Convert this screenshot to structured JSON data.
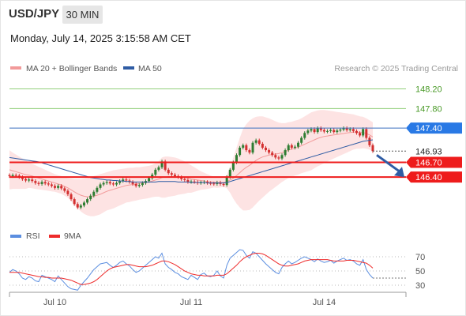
{
  "header": {
    "symbol": "USD/JPY",
    "timeframe": "30 MIN",
    "datetime": "Monday, July 14, 2025 3:15:58 AM CET"
  },
  "colors": {
    "bb_fill": "#fde3e3",
    "ma20": "#f29a9a",
    "ma50": "#2f5ca4",
    "candle_up": "#2e7d32",
    "candle_down": "#d32f2f",
    "target_line": "#93cf7b",
    "pivot_line": "#3b6fbf",
    "support_line": "#ee1c1c",
    "rsi": "#5b8ee0",
    "rsi_ma": "#ee2b2b"
  },
  "chart_data": [
    {
      "type": "candlestick",
      "legend": [
        {
          "name": "MA 20 + Bollinger Bands",
          "color": "#f29a9a"
        },
        {
          "name": "MA 50",
          "color": "#2f5ca4"
        }
      ],
      "credit": "Research © 2025 Trading Central",
      "x_ticks": [
        "Jul 10",
        "Jul 11",
        "Jul 14"
      ],
      "ylim": [
        145.5,
        148.45
      ],
      "levels": [
        {
          "value": 148.2,
          "label": "148.20",
          "kind": "target"
        },
        {
          "value": 147.8,
          "label": "147.80",
          "kind": "target"
        },
        {
          "value": 147.4,
          "label": "147.40",
          "kind": "pivot"
        },
        {
          "value": 146.93,
          "label": "146.93",
          "kind": "last"
        },
        {
          "value": 146.7,
          "label": "146.70",
          "kind": "support"
        },
        {
          "value": 146.4,
          "label": "146.40",
          "kind": "support"
        }
      ],
      "close": [
        146.42,
        146.44,
        146.43,
        146.4,
        146.36,
        146.33,
        146.35,
        146.32,
        146.28,
        146.26,
        146.3,
        146.27,
        146.25,
        146.22,
        146.18,
        146.22,
        146.17,
        146.12,
        146.05,
        145.95,
        145.85,
        145.78,
        145.82,
        145.88,
        145.95,
        146.02,
        146.1,
        146.18,
        146.25,
        146.28,
        146.3,
        146.27,
        146.25,
        146.28,
        146.32,
        146.35,
        146.33,
        146.3,
        146.26,
        146.22,
        146.24,
        146.28,
        146.32,
        146.38,
        146.45,
        146.55,
        146.6,
        146.72,
        146.55,
        146.48,
        146.45,
        146.42,
        146.4,
        146.36,
        146.34,
        146.3,
        146.31,
        146.3,
        146.28,
        146.29,
        146.3,
        146.28,
        146.27,
        146.26,
        146.29,
        146.26,
        146.24,
        146.4,
        146.55,
        146.7,
        146.85,
        147.0,
        147.05,
        146.95,
        146.9,
        147.1,
        147.15,
        147.08,
        147.0,
        146.95,
        146.9,
        146.85,
        146.8,
        146.78,
        146.85,
        146.95,
        147.05,
        147.0,
        147.02,
        147.1,
        147.2,
        147.3,
        147.35,
        147.38,
        147.32,
        147.4,
        147.36,
        147.33,
        147.34,
        147.36,
        147.32,
        147.35,
        147.37,
        147.4,
        147.36,
        147.38,
        147.34,
        147.3,
        147.25,
        147.38,
        147.2,
        147.05,
        146.93
      ],
      "ma20": [
        146.55,
        146.53,
        146.51,
        146.49,
        146.47,
        146.45,
        146.44,
        146.42,
        146.4,
        146.38,
        146.36,
        146.34,
        146.32,
        146.3,
        146.28,
        146.26,
        146.24,
        146.21,
        146.18,
        146.14,
        146.1,
        146.06,
        146.03,
        146.01,
        146.0,
        146.0,
        146.01,
        146.03,
        146.05,
        146.08,
        146.11,
        146.13,
        146.15,
        146.17,
        146.19,
        146.21,
        146.23,
        146.24,
        146.25,
        146.26,
        146.27,
        146.28,
        146.29,
        146.3,
        146.32,
        146.34,
        146.36,
        146.39,
        146.4,
        146.41,
        146.41,
        146.41,
        146.41,
        146.4,
        146.39,
        146.38,
        146.36,
        146.35,
        146.34,
        146.33,
        146.32,
        146.31,
        146.3,
        146.3,
        146.29,
        146.29,
        146.29,
        146.31,
        146.34,
        146.38,
        146.43,
        146.49,
        146.55,
        146.6,
        146.64,
        146.69,
        146.74,
        146.78,
        146.81,
        146.83,
        146.85,
        146.86,
        146.87,
        146.88,
        146.9,
        146.92,
        146.95,
        146.97,
        146.99,
        147.01,
        147.04,
        147.07,
        147.1,
        147.13,
        147.16,
        147.19,
        147.21,
        147.23,
        147.24,
        147.25,
        147.26,
        147.27,
        147.28,
        147.29,
        147.3,
        147.31,
        147.32,
        147.32,
        147.31,
        147.31,
        147.29,
        147.26,
        147.22
      ],
      "bb_upper": [
        146.95,
        146.9,
        146.86,
        146.82,
        146.78,
        146.74,
        146.7,
        146.67,
        146.64,
        146.61,
        146.58,
        146.55,
        146.52,
        146.49,
        146.46,
        146.44,
        146.42,
        146.4,
        146.38,
        146.37,
        146.36,
        146.36,
        146.36,
        146.37,
        146.38,
        146.4,
        146.42,
        146.44,
        146.46,
        146.48,
        146.5,
        146.52,
        146.54,
        146.55,
        146.56,
        146.57,
        146.58,
        146.59,
        146.59,
        146.6,
        146.6,
        146.61,
        146.62,
        146.63,
        146.65,
        146.68,
        146.72,
        146.8,
        146.82,
        146.82,
        146.81,
        146.8,
        146.78,
        146.75,
        146.72,
        146.68,
        146.64,
        146.6,
        146.56,
        146.52,
        146.49,
        146.46,
        146.43,
        146.41,
        146.4,
        146.39,
        146.38,
        146.45,
        146.6,
        146.8,
        147.0,
        147.2,
        147.38,
        147.48,
        147.55,
        147.6,
        147.63,
        147.64,
        147.64,
        147.62,
        147.6,
        147.57,
        147.54,
        147.51,
        147.5,
        147.5,
        147.52,
        147.53,
        147.55,
        147.57,
        147.6,
        147.64,
        147.68,
        147.72,
        147.74,
        147.76,
        147.77,
        147.77,
        147.76,
        147.75,
        147.74,
        147.73,
        147.72,
        147.71,
        147.7,
        147.69,
        147.68,
        147.66,
        147.64,
        147.63,
        147.6,
        147.56,
        147.52
      ],
      "bb_lower": [
        146.15,
        146.16,
        146.16,
        146.16,
        146.16,
        146.16,
        146.18,
        146.17,
        146.16,
        146.15,
        146.14,
        146.13,
        146.12,
        146.11,
        146.1,
        146.08,
        146.06,
        146.02,
        145.98,
        145.91,
        145.84,
        145.76,
        145.7,
        145.65,
        145.62,
        145.6,
        145.6,
        145.62,
        145.64,
        145.68,
        145.72,
        145.74,
        145.76,
        145.79,
        145.82,
        145.85,
        145.88,
        145.89,
        145.91,
        145.92,
        145.94,
        145.95,
        145.96,
        145.97,
        145.99,
        146.0,
        146.0,
        145.98,
        145.98,
        146.0,
        146.01,
        146.02,
        146.04,
        146.05,
        146.06,
        146.08,
        146.08,
        146.1,
        146.12,
        146.14,
        146.15,
        146.16,
        146.17,
        146.19,
        146.18,
        146.19,
        146.2,
        146.17,
        146.08,
        145.96,
        145.86,
        145.78,
        145.72,
        145.72,
        145.73,
        145.78,
        145.85,
        145.92,
        145.98,
        146.04,
        146.1,
        146.15,
        146.2,
        146.25,
        146.3,
        146.34,
        146.38,
        146.41,
        146.43,
        146.45,
        146.48,
        146.5,
        146.52,
        146.54,
        146.58,
        146.62,
        146.65,
        146.69,
        146.72,
        146.75,
        146.78,
        146.81,
        146.84,
        146.87,
        146.9,
        146.93,
        146.96,
        146.98,
        146.98,
        146.99,
        146.98,
        146.96,
        146.92
      ],
      "ma50": [
        146.8,
        146.79,
        146.78,
        146.77,
        146.76,
        146.75,
        146.74,
        146.73,
        146.72,
        146.71,
        146.69,
        146.67,
        146.65,
        146.63,
        146.61,
        146.59,
        146.57,
        146.55,
        146.53,
        146.51,
        146.49,
        146.47,
        146.45,
        146.43,
        146.41,
        146.39,
        146.38,
        146.37,
        146.36,
        146.35,
        146.34,
        146.34,
        146.33,
        146.33,
        146.32,
        146.32,
        146.31,
        146.31,
        146.3,
        146.3,
        146.3,
        146.3,
        146.3,
        146.3,
        146.3,
        146.3,
        146.31,
        146.31,
        146.31,
        146.31,
        146.31,
        146.31,
        146.3,
        146.3,
        146.3,
        146.3,
        146.29,
        146.29,
        146.29,
        146.29,
        146.29,
        146.28,
        146.28,
        146.28,
        146.28,
        146.28,
        146.28,
        146.29,
        146.31,
        146.33,
        146.35,
        146.37,
        146.39,
        146.41,
        146.43,
        146.45,
        146.47,
        146.49,
        146.51,
        146.53,
        146.55,
        146.57,
        146.59,
        146.61,
        146.63,
        146.65,
        146.67,
        146.69,
        146.71,
        146.73,
        146.75,
        146.77,
        146.79,
        146.81,
        146.83,
        146.85,
        146.87,
        146.89,
        146.91,
        146.93,
        146.95,
        146.97,
        146.99,
        147.01,
        147.03,
        147.05,
        147.07,
        147.09,
        147.11,
        147.13,
        147.14,
        147.15,
        147.16
      ],
      "forecast": {
        "from": 146.93,
        "to": 146.4
      }
    },
    {
      "type": "line",
      "title": "RSI",
      "legend": [
        {
          "name": "RSI",
          "color": "#5b8ee0"
        },
        {
          "name": "9MA",
          "color": "#ee2b2b"
        }
      ],
      "ylim": [
        20,
        80
      ],
      "y_ticks": [
        70,
        50,
        30
      ],
      "rsi": [
        48,
        52,
        50,
        46,
        40,
        38,
        42,
        40,
        36,
        35,
        44,
        42,
        40,
        38,
        35,
        43,
        38,
        33,
        28,
        25,
        24,
        23,
        30,
        35,
        40,
        46,
        52,
        56,
        60,
        61,
        62,
        58,
        55,
        58,
        62,
        64,
        60,
        57,
        52,
        48,
        50,
        54,
        58,
        62,
        66,
        70,
        68,
        75,
        60,
        55,
        52,
        48,
        46,
        42,
        40,
        38,
        44,
        41,
        38,
        45,
        47,
        43,
        42,
        44,
        50,
        43,
        40,
        58,
        68,
        72,
        76,
        80,
        79,
        72,
        68,
        77,
        75,
        70,
        65,
        60,
        56,
        52,
        48,
        46,
        55,
        60,
        64,
        60,
        62,
        65,
        68,
        70,
        68,
        66,
        63,
        67,
        64,
        62,
        63,
        65,
        61,
        64,
        66,
        68,
        65,
        66,
        64,
        60,
        58,
        66,
        52,
        45,
        40
      ],
      "rsi_ma": [
        48,
        48,
        48,
        48,
        47,
        46,
        45,
        44,
        43,
        42,
        42,
        41,
        41,
        40,
        40,
        40,
        40,
        39,
        38,
        37,
        35,
        33,
        31,
        31,
        32,
        33,
        35,
        38,
        42,
        46,
        50,
        53,
        55,
        56,
        57,
        58,
        59,
        59,
        58,
        57,
        56,
        56,
        56,
        57,
        58,
        60,
        62,
        64,
        64,
        63,
        61,
        59,
        56,
        53,
        50,
        48,
        46,
        45,
        44,
        44,
        43,
        43,
        43,
        43,
        44,
        44,
        44,
        46,
        50,
        54,
        58,
        63,
        67,
        70,
        72,
        74,
        75,
        75,
        74,
        72,
        69,
        66,
        63,
        60,
        58,
        57,
        57,
        58,
        59,
        60,
        62,
        64,
        65,
        66,
        66,
        66,
        66,
        66,
        66,
        65,
        64,
        64,
        64,
        64,
        65,
        65,
        65,
        64,
        63,
        62,
        61,
        58,
        54
      ]
    }
  ]
}
